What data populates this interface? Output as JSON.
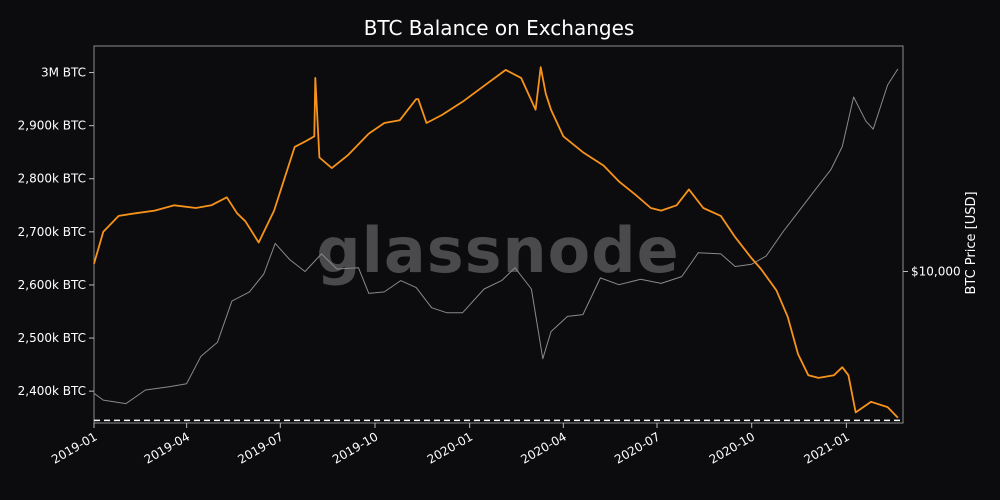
{
  "chart_data": {
    "type": "line",
    "title": "BTC Balance on Exchanges",
    "watermark": "glassnode",
    "y_left_ticks": [
      "3M BTC",
      "2,900k BTC",
      "2,800k BTC",
      "2,700k BTC",
      "2,600k BTC",
      "2,500k BTC",
      "2,400k BTC"
    ],
    "y_left_tick_values": [
      3000000,
      2900000,
      2800000,
      2700000,
      2600000,
      2500000,
      2400000
    ],
    "y_left_range": [
      2340000,
      3050000
    ],
    "y_right_label": "BTC Price [USD]",
    "y_right_ticks": [
      "$10,000"
    ],
    "y_right_tick_values": [
      10000
    ],
    "y_right_scale": "log",
    "y_right_range": [
      3000,
      60000
    ],
    "x_ticks": [
      "2019-01",
      "2019-04",
      "2019-07",
      "2019-10",
      "2020-01",
      "2020-04",
      "2020-07",
      "2020-10",
      "2021-01"
    ],
    "x_tick_dates": [
      "2019-01-01",
      "2019-04-01",
      "2019-07-01",
      "2019-10-01",
      "2020-01-01",
      "2020-04-01",
      "2020-07-01",
      "2020-10-01",
      "2021-01-01"
    ],
    "x_range": [
      "2019-01-01",
      "2021-02-25"
    ],
    "reference_line": {
      "value": 2345000,
      "style": "dashed",
      "color": "#ffffff"
    },
    "grid": false,
    "series": [
      {
        "color": "#f7931a",
        "x": [
          "2019-01-01",
          "2019-01-10",
          "2019-01-25",
          "2019-02-10",
          "2019-03-01",
          "2019-03-20",
          "2019-04-10",
          "2019-04-25",
          "2019-05-10",
          "2019-05-20",
          "2019-05-28",
          "2019-06-10",
          "2019-06-25",
          "2019-07-05",
          "2019-07-15",
          "2019-07-25",
          "2019-08-03",
          "2019-08-04",
          "2019-08-08",
          "2019-08-20",
          "2019-09-05",
          "2019-09-25",
          "2019-10-10",
          "2019-10-25",
          "2019-11-10",
          "2019-11-12",
          "2019-11-20",
          "2019-12-05",
          "2019-12-25",
          "2020-01-15",
          "2020-02-05",
          "2020-02-20",
          "2020-03-05",
          "2020-03-10",
          "2020-03-15",
          "2020-03-20",
          "2020-04-01",
          "2020-04-20",
          "2020-05-10",
          "2020-05-25",
          "2020-06-10",
          "2020-06-25",
          "2020-07-05",
          "2020-07-20",
          "2020-08-01",
          "2020-08-05",
          "2020-08-15",
          "2020-09-01",
          "2020-09-15",
          "2020-10-01",
          "2020-10-10",
          "2020-10-25",
          "2020-11-05",
          "2020-11-15",
          "2020-11-25",
          "2020-12-05",
          "2020-12-20",
          "2020-12-28",
          "2021-01-03",
          "2021-01-10",
          "2021-01-25",
          "2021-02-10",
          "2021-02-20"
        ],
        "y": [
          2640000,
          2700000,
          2730000,
          2735000,
          2740000,
          2750000,
          2745000,
          2750000,
          2765000,
          2735000,
          2720000,
          2680000,
          2740000,
          2800000,
          2860000,
          2870000,
          2880000,
          2990000,
          2840000,
          2820000,
          2845000,
          2885000,
          2905000,
          2910000,
          2950000,
          2950000,
          2905000,
          2920000,
          2945000,
          2975000,
          3005000,
          2990000,
          2930000,
          3010000,
          2960000,
          2930000,
          2880000,
          2850000,
          2825000,
          2795000,
          2770000,
          2745000,
          2740000,
          2750000,
          2780000,
          2770000,
          2745000,
          2730000,
          2690000,
          2650000,
          2630000,
          2590000,
          2540000,
          2470000,
          2430000,
          2425000,
          2430000,
          2445000,
          2430000,
          2360000,
          2380000,
          2370000,
          2350000
        ]
      },
      {
        "color": "#8a8a8a",
        "x": [
          "2019-01-01",
          "2019-01-10",
          "2019-02-01",
          "2019-02-20",
          "2019-03-15",
          "2019-04-01",
          "2019-04-15",
          "2019-05-01",
          "2019-05-15",
          "2019-06-01",
          "2019-06-15",
          "2019-06-26",
          "2019-07-10",
          "2019-07-25",
          "2019-08-10",
          "2019-08-25",
          "2019-09-15",
          "2019-09-25",
          "2019-10-10",
          "2019-10-26",
          "2019-11-10",
          "2019-11-25",
          "2019-12-10",
          "2019-12-25",
          "2020-01-15",
          "2020-02-01",
          "2020-02-14",
          "2020-03-01",
          "2020-03-12",
          "2020-03-20",
          "2020-04-05",
          "2020-04-20",
          "2020-05-07",
          "2020-05-25",
          "2020-06-15",
          "2020-07-05",
          "2020-07-25",
          "2020-08-10",
          "2020-09-01",
          "2020-09-15",
          "2020-10-01",
          "2020-10-15",
          "2020-11-01",
          "2020-11-15",
          "2020-12-01",
          "2020-12-17",
          "2020-12-28",
          "2021-01-08",
          "2021-01-20",
          "2021-01-27",
          "2021-02-10",
          "2021-02-20"
        ],
        "y": [
          3800,
          3600,
          3500,
          3900,
          4000,
          4100,
          5100,
          5700,
          7900,
          8500,
          9800,
          12500,
          11000,
          10000,
          11500,
          10200,
          10300,
          8400,
          8500,
          9300,
          8800,
          7500,
          7200,
          7200,
          8700,
          9300,
          10300,
          8700,
          5000,
          6200,
          7000,
          7100,
          9500,
          9000,
          9400,
          9100,
          9600,
          11600,
          11500,
          10400,
          10600,
          11300,
          13800,
          16000,
          19000,
          22500,
          27000,
          40000,
          33000,
          31000,
          44000,
          50000
        ]
      }
    ]
  }
}
